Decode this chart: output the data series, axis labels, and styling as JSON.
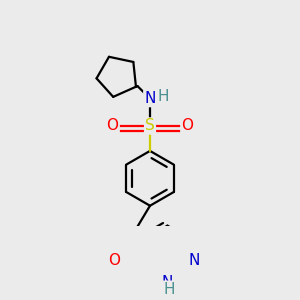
{
  "bg_color": "#ebebeb",
  "atom_colors": {
    "C": "#000000",
    "N": "#0000cc",
    "O": "#ff0000",
    "S": "#cccc00",
    "H": "#4a9090"
  },
  "bond_color": "#000000",
  "bond_width": 1.6,
  "font_size_atom": 11
}
